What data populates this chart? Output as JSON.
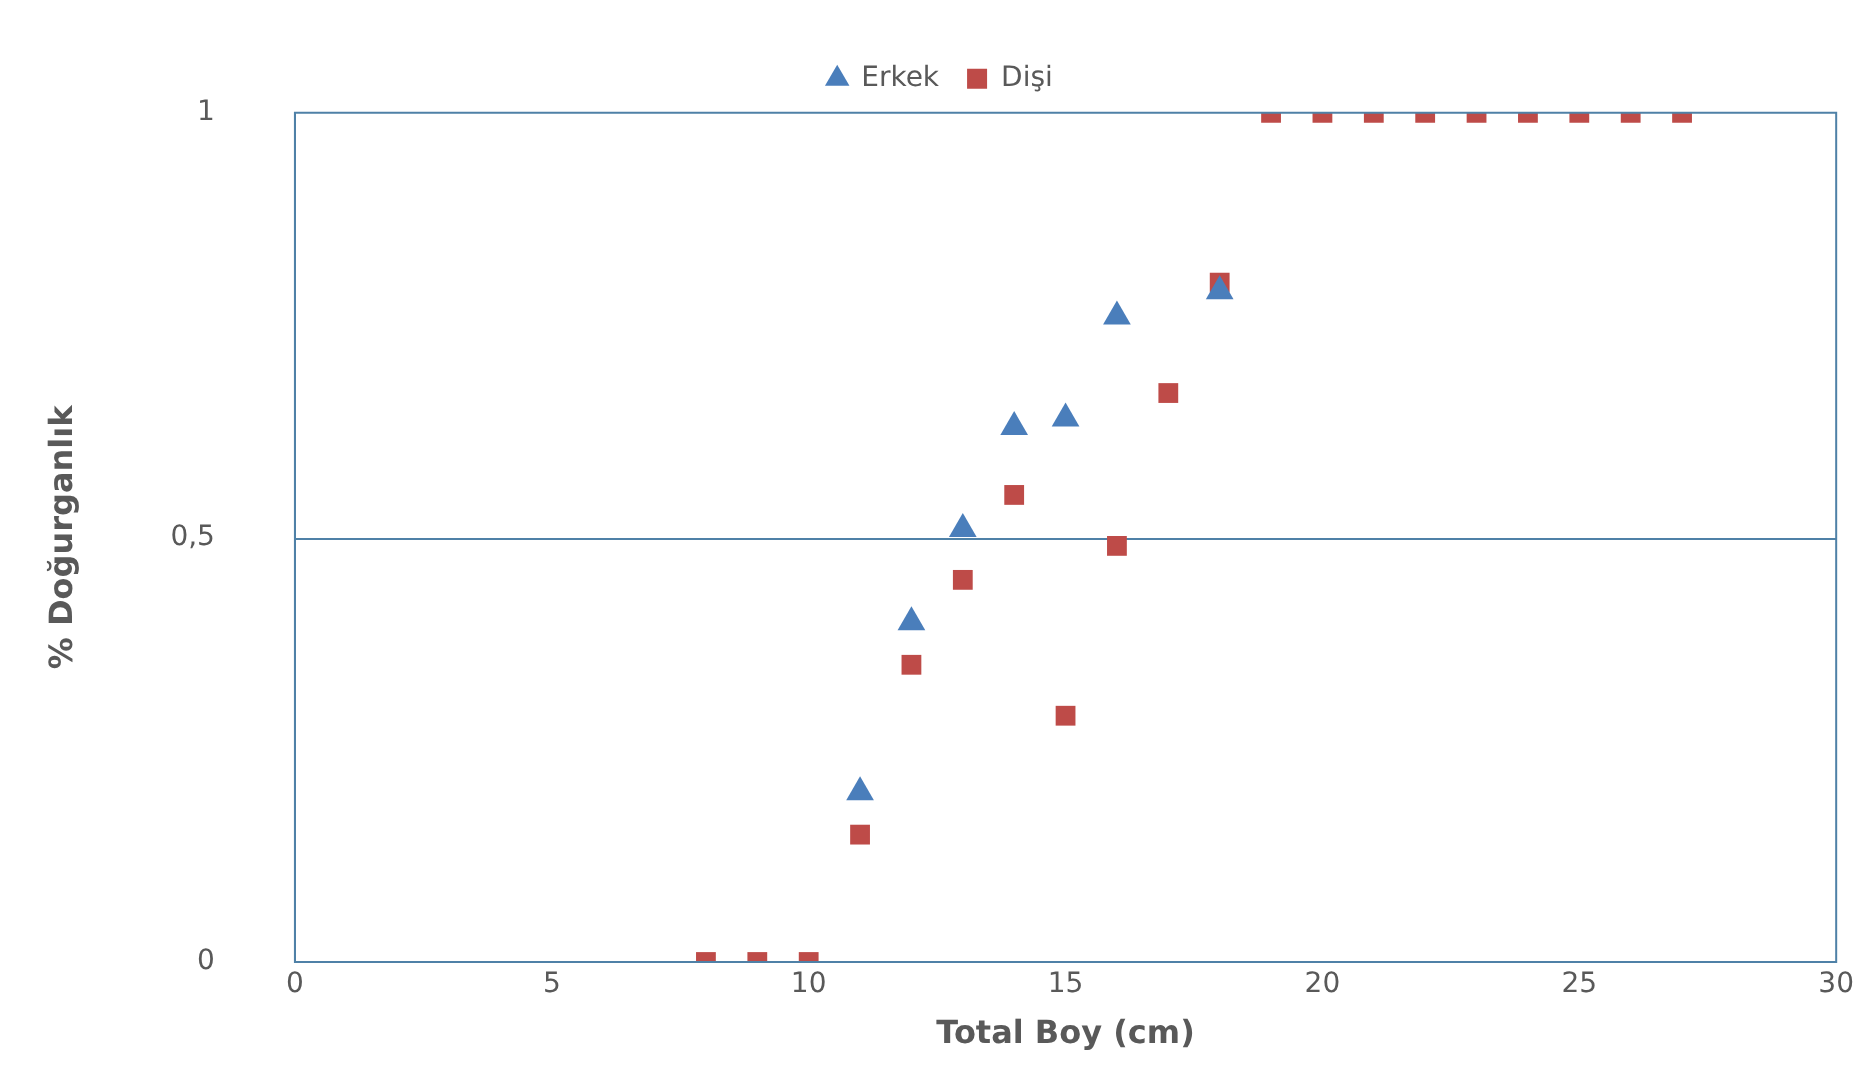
{
  "chart_data": {
    "type": "scatter",
    "xlabel": "Total Boy (cm)",
    "ylabel": "% Doğurganlık",
    "series": [
      {
        "name": "Erkek",
        "color": "#4a7ebb",
        "marker": "triangle",
        "x": [
          11,
          12,
          13,
          14,
          15,
          16,
          18
        ],
        "values": [
          0.2,
          0.4,
          0.51,
          0.63,
          0.64,
          0.76,
          0.79
        ]
      },
      {
        "name": "Dişi",
        "color": "#be4b48",
        "marker": "square",
        "x": [
          8,
          9,
          10,
          11,
          12,
          13,
          14,
          15,
          16,
          17,
          18,
          19,
          20,
          21,
          22,
          23,
          24,
          25,
          26,
          27
        ],
        "values": [
          0,
          0,
          0,
          0.15,
          0.35,
          0.45,
          0.55,
          0.29,
          0.49,
          0.67,
          0.8,
          1,
          1,
          1,
          1,
          1,
          1,
          1,
          1,
          1
        ]
      }
    ],
    "xlim": [
      0,
      30
    ],
    "xticks": [
      0,
      5,
      10,
      15,
      20,
      25,
      30
    ],
    "ylim": [
      0,
      1
    ],
    "yticks": [
      0,
      {
        "value": 0.5,
        "label": "0,5"
      },
      1
    ],
    "ref_lines": [
      {
        "axis": "y",
        "value": 0.5,
        "color": "#4f81a7"
      }
    ],
    "legend": "top"
  }
}
